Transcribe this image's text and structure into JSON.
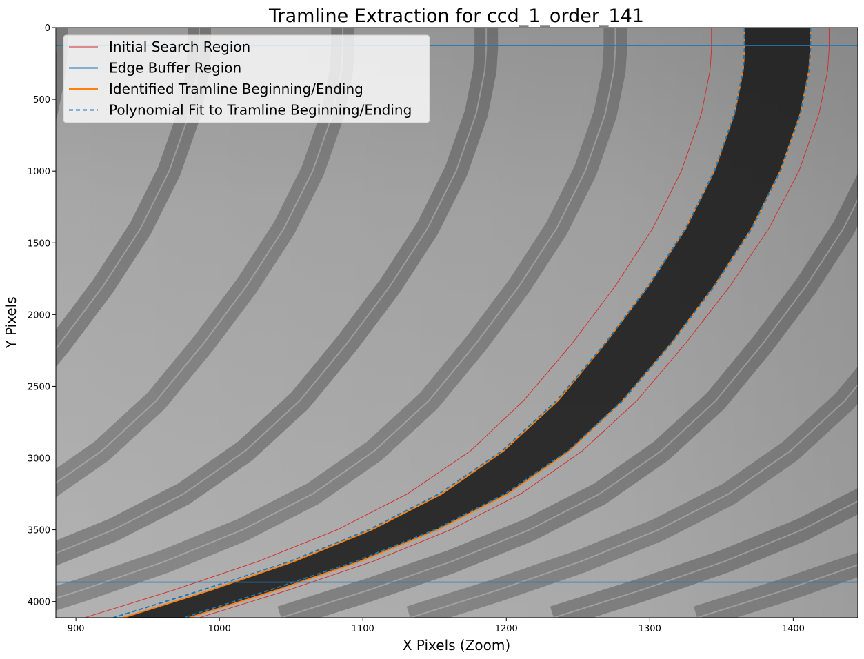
{
  "chart_data": {
    "type": "line",
    "title": "Tramline Extraction for ccd_1_order_141",
    "xlabel": "X Pixels (Zoom)",
    "ylabel": "Y Pixels",
    "xlim": [
      886,
      1445
    ],
    "ylim": [
      4112,
      0
    ],
    "y_inverted": true,
    "background": "grayscale CCD image with curved dark tramline bands",
    "x_ticks": [
      900,
      1000,
      1100,
      1200,
      1300,
      1400
    ],
    "y_ticks": [
      0,
      500,
      1000,
      1500,
      2000,
      2500,
      3000,
      3500,
      4000
    ],
    "legend_position": "upper-left",
    "legend": [
      {
        "label": "Initial Search Region",
        "color": "#d62728",
        "style": "thin"
      },
      {
        "label": "Edge Buffer Region",
        "color": "#1f77b4",
        "style": "solid"
      },
      {
        "label": "Identified Tramline Beginning/Ending",
        "color": "#ff7f0e",
        "style": "solid"
      },
      {
        "label": "Polynomial Fit to Tramline Beginning/Ending",
        "color": "#1f77b4",
        "style": "dashed"
      }
    ],
    "edge_buffer_y": [
      125,
      3865
    ],
    "series": [
      {
        "name": "Initial Search Region",
        "color": "#d62728",
        "x": [
          1343,
          1343,
          1342,
          1336,
          1322,
          1302,
          1276,
          1246,
          1212,
          1175,
          1131,
          1082,
          1027,
          968,
          906
        ],
        "y": [
          0,
          150,
          300,
          600,
          1000,
          1400,
          1800,
          2200,
          2600,
          2950,
          3250,
          3500,
          3720,
          3920,
          4112
        ]
      },
      {
        "name": "Initial Search Region",
        "color": "#d62728",
        "x": [
          1425,
          1425,
          1424,
          1418,
          1404,
          1383,
          1356,
          1325,
          1291,
          1253,
          1210,
          1161,
          1107,
          1048,
          986
        ],
        "y": [
          0,
          150,
          300,
          600,
          1000,
          1400,
          1800,
          2200,
          2600,
          2950,
          3250,
          3500,
          3720,
          3920,
          4112
        ]
      },
      {
        "name": "Identified Tramline Beginning/Ending",
        "color": "#ff7f0e",
        "x": [
          1366,
          1366,
          1365,
          1359,
          1345,
          1325,
          1299,
          1269,
          1236,
          1198,
          1155,
          1106,
          1052,
          994,
          933
        ],
        "y": [
          0,
          150,
          300,
          600,
          1000,
          1400,
          1800,
          2200,
          2600,
          2950,
          3250,
          3500,
          3720,
          3920,
          4112
        ]
      },
      {
        "name": "Identified Tramline Beginning/Ending",
        "color": "#ff7f0e",
        "x": [
          1412,
          1412,
          1411,
          1405,
          1391,
          1371,
          1345,
          1315,
          1281,
          1244,
          1201,
          1152,
          1098,
          1040,
          979
        ],
        "y": [
          0,
          150,
          300,
          600,
          1000,
          1400,
          1800,
          2200,
          2600,
          2950,
          3250,
          3500,
          3720,
          3920,
          4112
        ]
      },
      {
        "name": "Polynomial Fit to Tramline Beginning/Ending",
        "color": "#1f77b4",
        "x": [
          1366,
          1366,
          1365,
          1359,
          1345,
          1325,
          1299,
          1269,
          1235,
          1197,
          1153,
          1104,
          1049,
          988,
          926
        ],
        "y": [
          0,
          150,
          300,
          600,
          1000,
          1400,
          1800,
          2200,
          2600,
          2950,
          3250,
          3500,
          3720,
          3920,
          4112
        ]
      },
      {
        "name": "Polynomial Fit to Tramline Beginning/Ending",
        "color": "#1f77b4",
        "x": [
          1412,
          1412,
          1411,
          1405,
          1391,
          1371,
          1345,
          1315,
          1281,
          1243,
          1199,
          1150,
          1095,
          1035,
          975
        ],
        "y": [
          0,
          150,
          300,
          600,
          1000,
          1400,
          1800,
          2200,
          2600,
          2950,
          3250,
          3500,
          3720,
          3920,
          4112
        ]
      }
    ]
  }
}
